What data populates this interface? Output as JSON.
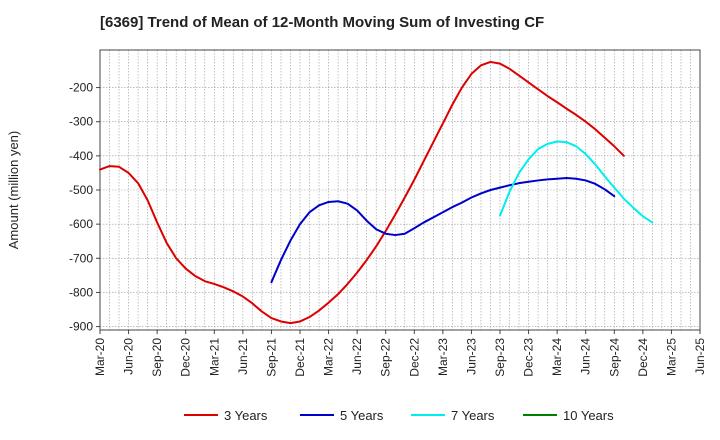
{
  "chart_data": {
    "type": "line",
    "title": "[6369]  Trend of Mean of 12-Month Moving Sum of Investing CF",
    "xlabel": "",
    "ylabel": "Amount (million yen)",
    "ylim": [
      -910,
      -90
    ],
    "yticks": [
      -900,
      -800,
      -700,
      -600,
      -500,
      -400,
      -300,
      -200
    ],
    "grid": true,
    "legend_position": "bottom",
    "x_tick_labels": [
      "Mar-20",
      "Jun-20",
      "Sep-20",
      "Dec-20",
      "Mar-21",
      "Jun-21",
      "Sep-21",
      "Dec-21",
      "Mar-22",
      "Jun-22",
      "Sep-22",
      "Dec-22",
      "Mar-23",
      "Jun-23",
      "Sep-23",
      "Dec-23",
      "Mar-24",
      "Jun-24",
      "Sep-24",
      "Dec-24",
      "Mar-25",
      "Jun-25"
    ],
    "series": [
      {
        "name": "3 Years",
        "color": "#dd0000",
        "start_index": 0,
        "values": [
          -440,
          -430,
          -432,
          -450,
          -480,
          -530,
          -595,
          -655,
          -700,
          -730,
          -752,
          -767,
          -775,
          -785,
          -797,
          -812,
          -832,
          -856,
          -875,
          -885,
          -890,
          -885,
          -872,
          -853,
          -830,
          -805,
          -775,
          -742,
          -705,
          -665,
          -620,
          -572,
          -522,
          -470,
          -415,
          -360,
          -305,
          -250,
          -200,
          -160,
          -135,
          -125,
          -130,
          -145,
          -165,
          -185,
          -205,
          -225,
          -243,
          -262,
          -280,
          -300,
          -322,
          -347,
          -372,
          -400
        ]
      },
      {
        "name": "5 Years",
        "color": "#0000cc",
        "start_index": 18,
        "values": [
          -770,
          -705,
          -648,
          -600,
          -565,
          -545,
          -535,
          -533,
          -540,
          -560,
          -590,
          -615,
          -628,
          -632,
          -628,
          -612,
          -595,
          -580,
          -565,
          -550,
          -537,
          -522,
          -510,
          -500,
          -493,
          -486,
          -480,
          -476,
          -472,
          -469,
          -467,
          -465,
          -467,
          -472,
          -482,
          -498,
          -518
        ]
      },
      {
        "name": "7 Years",
        "color": "#00eeee",
        "start_index": 42,
        "values": [
          -575,
          -505,
          -450,
          -410,
          -380,
          -365,
          -358,
          -360,
          -372,
          -395,
          -425,
          -460,
          -493,
          -525,
          -552,
          -577,
          -595
        ]
      },
      {
        "name": "10 Years",
        "color": "#008000",
        "start_index": 0,
        "values": []
      }
    ]
  }
}
